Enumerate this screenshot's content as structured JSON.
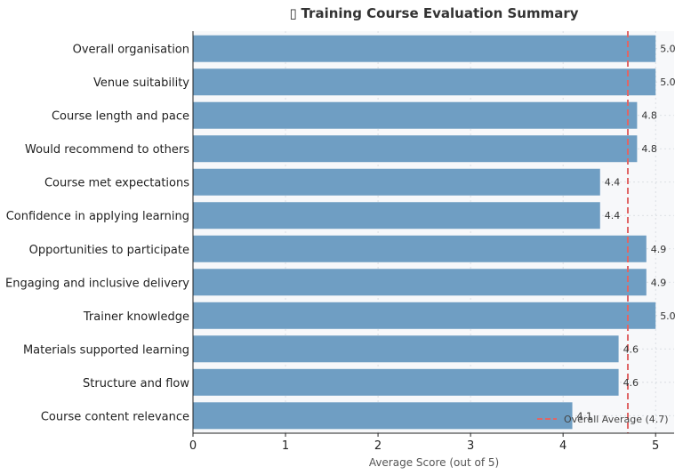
{
  "chart_data": {
    "type": "bar",
    "orientation": "horizontal",
    "title": "Training Course Evaluation Summary",
    "title_icon": "chart-emoji-icon",
    "xlabel": "Average Score (out of 5)",
    "ylabel": "",
    "xlim": [
      0,
      5.2
    ],
    "xticks": [
      "0",
      "1",
      "2",
      "3",
      "4",
      "5"
    ],
    "grid": true,
    "bar_color": "#6f9ec3",
    "categories": [
      "Overall organisation",
      "Venue suitability",
      "Course length and pace",
      "Would recommend to others",
      "Course met expectations",
      "Confidence in applying learning",
      "Opportunities to participate",
      "Engaging and inclusive delivery",
      "Trainer knowledge",
      "Materials supported learning",
      "Structure and flow",
      "Course content relevance"
    ],
    "values": [
      5.0,
      5.0,
      4.8,
      4.8,
      4.4,
      4.4,
      4.9,
      4.9,
      5.0,
      4.6,
      4.6,
      4.1
    ],
    "value_labels": [
      "5.0",
      "5.0",
      "4.8",
      "4.8",
      "4.4",
      "4.4",
      "4.9",
      "4.9",
      "5.0",
      "4.6",
      "4.6",
      "4.1"
    ],
    "reference_line": {
      "value": 4.7,
      "label": "Overall Average (4.7)",
      "color": "#e06666",
      "style": "dashed"
    },
    "legend_placement": "bottom-right"
  }
}
